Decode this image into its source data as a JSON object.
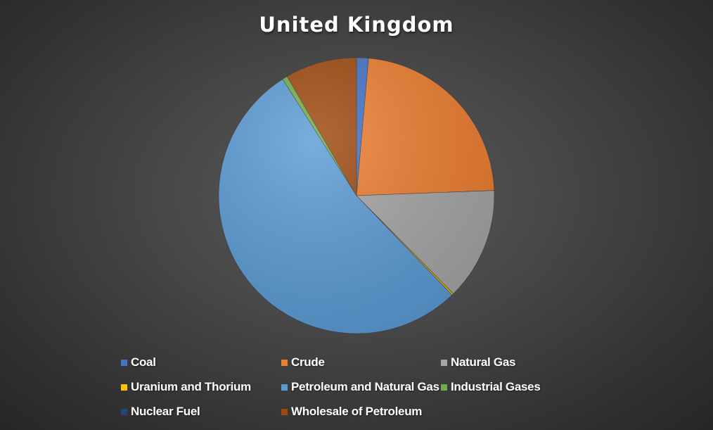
{
  "chart_data": {
    "type": "pie",
    "title": "United Kingdom",
    "series": [
      {
        "name": "Coal",
        "value": 1.4,
        "color": "#4472c4"
      },
      {
        "name": "Crude",
        "value": 23.0,
        "color": "#ed7d31"
      },
      {
        "name": "Natural Gas",
        "value": 13.2,
        "color": "#a5a5a5"
      },
      {
        "name": "Uranium and Thorium",
        "value": 0.2,
        "color": "#ffc000"
      },
      {
        "name": "Petroleum and Natural Gas",
        "value": 53.2,
        "color": "#5b9bd5"
      },
      {
        "name": "Industrial Gases",
        "value": 0.6,
        "color": "#70ad47"
      },
      {
        "name": "Nuclear Fuel",
        "value": 0.0,
        "color": "#264478"
      },
      {
        "name": "Wholesale of Petroleum",
        "value": 8.4,
        "color": "#9e480e"
      }
    ],
    "legend_position": "bottom"
  }
}
